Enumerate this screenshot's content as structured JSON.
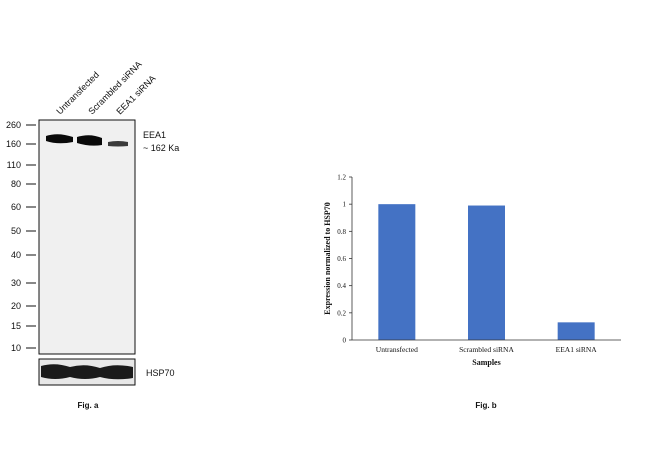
{
  "figure_a": {
    "caption": "Fig. a",
    "lanes": [
      "Untransfected",
      "Scrambled siRNA",
      "EEA1 siRNA"
    ],
    "marker_label": "EEA1",
    "marker_size": "~ 162 Ka",
    "loading_control": "HSP70",
    "mw_ladder": [
      "260",
      "160",
      "110",
      "80",
      "60",
      "50",
      "40",
      "30",
      "20",
      "15",
      "10"
    ],
    "band_intensity": [
      1.0,
      0.99,
      0.4
    ]
  },
  "figure_b": {
    "caption": "Fig. b"
  },
  "chart_data": {
    "type": "bar",
    "categories": [
      "Untransfected",
      "Scrambled siRNA",
      "EEA1 siRNA"
    ],
    "values": [
      1.0,
      0.99,
      0.13
    ],
    "title": "",
    "xlabel": "Samples",
    "ylabel": "Expression normalized to HSP70",
    "ylim": [
      0,
      1.2
    ],
    "yticks": [
      "0",
      "0.2",
      "0.4",
      "0.6",
      "0.8",
      "1",
      "1.2"
    ],
    "bar_color": "#4472c4",
    "grid": false,
    "legend": "none"
  }
}
